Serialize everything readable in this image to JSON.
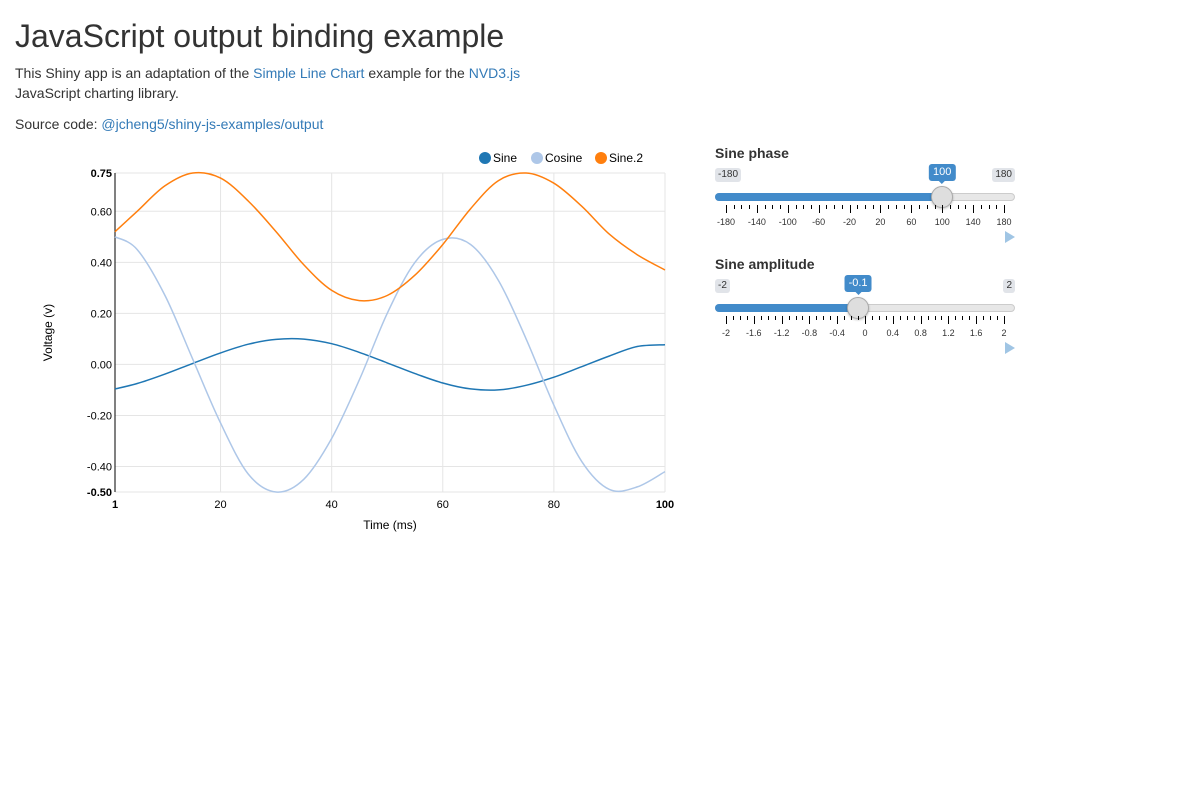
{
  "page": {
    "title": "JavaScript output binding example",
    "intro_before": "This Shiny app is an adaptation of the ",
    "intro_link1": "Simple Line Chart",
    "intro_middle": " example for the ",
    "intro_link2": "NVD3.js",
    "intro_after": " JavaScript charting library.",
    "source_label": "Source code: ",
    "source_link": "@jcheng5/shiny-js-examples/output"
  },
  "chart_data": {
    "type": "line",
    "xlabel": "Time (ms)",
    "ylabel": "Voltage (v)",
    "xlim": [
      1,
      100
    ],
    "ylim": [
      -0.5,
      0.75
    ],
    "xticks": [
      1,
      20,
      40,
      60,
      80,
      100
    ],
    "yticks": [
      0.75,
      0.6,
      0.4,
      0.2,
      0.0,
      -0.2,
      -0.4,
      -0.5
    ],
    "ytick_labels": [
      "0.75",
      "0.60",
      "0.40",
      "0.20",
      "0.00",
      "-0.20",
      "-0.40",
      "-0.50"
    ],
    "xtick_labels": [
      "1",
      "20",
      "40",
      "60",
      "80",
      "100"
    ],
    "grid": true,
    "legend_position": "top-right",
    "series": [
      {
        "name": "Sine",
        "color": "#1f77b4",
        "x": [
          1,
          5,
          10,
          15,
          20,
          25,
          30,
          35,
          40,
          45,
          50,
          55,
          60,
          65,
          70,
          75,
          80,
          85,
          90,
          95,
          100
        ],
        "values": [
          -0.096,
          -0.075,
          -0.038,
          0.004,
          0.045,
          0.079,
          0.098,
          0.099,
          0.081,
          0.047,
          0.006,
          -0.036,
          -0.073,
          -0.096,
          -0.1,
          -0.082,
          -0.05,
          -0.009,
          0.033,
          0.07,
          0.077
        ]
      },
      {
        "name": "Cosine",
        "color": "#aec7e8",
        "x": [
          1,
          5,
          10,
          15,
          20,
          25,
          30,
          35,
          40,
          45,
          50,
          55,
          60,
          65,
          70,
          75,
          80,
          85,
          90,
          95,
          100
        ],
        "values": [
          0.5,
          0.45,
          0.27,
          0.02,
          -0.23,
          -0.43,
          -0.5,
          -0.45,
          -0.29,
          -0.06,
          0.2,
          0.4,
          0.49,
          0.47,
          0.33,
          0.1,
          -0.16,
          -0.38,
          -0.49,
          -0.48,
          -0.42
        ]
      },
      {
        "name": "Sine.2",
        "color": "#ff7f0e",
        "x": [
          1,
          5,
          10,
          15,
          20,
          25,
          30,
          35,
          40,
          45,
          50,
          55,
          60,
          65,
          70,
          75,
          80,
          85,
          90,
          95,
          100
        ],
        "values": [
          0.52,
          0.6,
          0.7,
          0.75,
          0.73,
          0.64,
          0.52,
          0.39,
          0.29,
          0.25,
          0.27,
          0.35,
          0.47,
          0.61,
          0.72,
          0.75,
          0.71,
          0.62,
          0.51,
          0.43,
          0.37
        ]
      }
    ]
  },
  "sliders": [
    {
      "label": "Sine phase",
      "min": -180,
      "max": 180,
      "value": 100,
      "min_label": "-180",
      "max_label": "180",
      "value_label": "100",
      "tick_labels": [
        "-180",
        "-140",
        "-100",
        "-60",
        "-20",
        "20",
        "60",
        "100",
        "140",
        "180"
      ],
      "tick_values": [
        -180,
        -140,
        -100,
        -60,
        -20,
        20,
        60,
        100,
        140,
        180
      ],
      "play_icon": "play-icon"
    },
    {
      "label": "Sine amplitude",
      "min": -2,
      "max": 2,
      "value": -0.1,
      "min_label": "-2",
      "max_label": "2",
      "value_label": "-0.1",
      "tick_labels": [
        "-2",
        "-1.6",
        "-1.2",
        "-0.8",
        "-0.4",
        "0",
        "0.4",
        "0.8",
        "1.2",
        "1.6",
        "2"
      ],
      "tick_values": [
        -2,
        -1.6,
        -1.2,
        -0.8,
        -0.4,
        0,
        0.4,
        0.8,
        1.2,
        1.6,
        2
      ],
      "play_icon": "play-icon"
    }
  ],
  "colors": {
    "link": "#337ab7",
    "slider_accent": "#428bca",
    "gridline": "#e5e5e5"
  }
}
